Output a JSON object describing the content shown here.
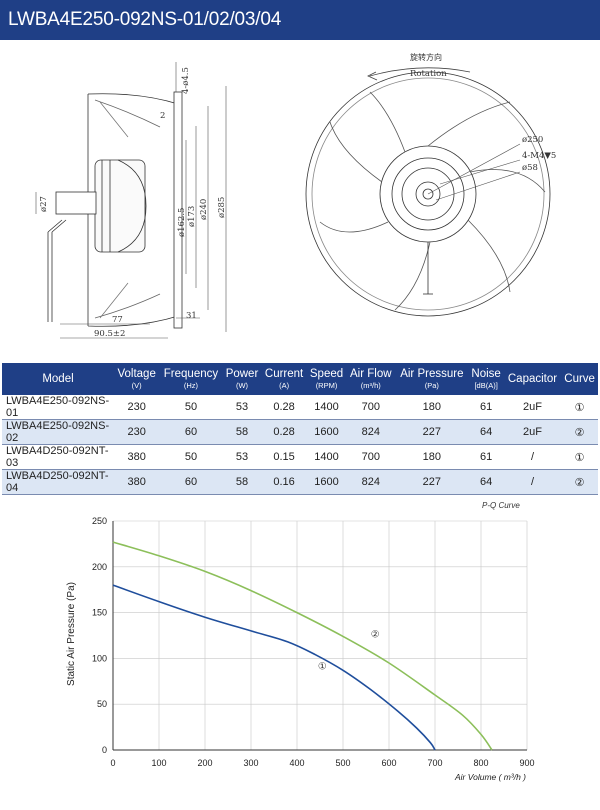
{
  "title": "LWBA4E250-092NS-01/02/03/04",
  "drawing": {
    "side_dims": [
      "4-ø4.5",
      "2",
      "ø27",
      "ø162.5",
      "ø173",
      "ø240",
      "ø285",
      "77",
      "90.5±2",
      "31"
    ],
    "front_labels": [
      "旋转方向",
      "Rotation",
      "ø250",
      "4-M4▼5",
      "ø58"
    ]
  },
  "table": {
    "headers": [
      {
        "label": "Model",
        "unit": ""
      },
      {
        "label": "Voltage",
        "unit": "(V)"
      },
      {
        "label": "Frequency",
        "unit": "(Hz)"
      },
      {
        "label": "Power",
        "unit": "(W)"
      },
      {
        "label": "Current",
        "unit": "(A)"
      },
      {
        "label": "Speed",
        "unit": "(RPM)"
      },
      {
        "label": "Air Flow",
        "unit": "(m³/h)"
      },
      {
        "label": "Air Pressure",
        "unit": "(Pa)"
      },
      {
        "label": "Noise",
        "unit": "[dB(A)]"
      },
      {
        "label": "Capacitor",
        "unit": ""
      },
      {
        "label": "Curve",
        "unit": ""
      }
    ],
    "rows": [
      [
        "LWBA4E250-092NS-01",
        "230",
        "50",
        "53",
        "0.28",
        "1400",
        "700",
        "180",
        "61",
        "2uF",
        "①"
      ],
      [
        "LWBA4E250-092NS-02",
        "230",
        "60",
        "58",
        "0.28",
        "1600",
        "824",
        "227",
        "64",
        "2uF",
        "②"
      ],
      [
        "LWBA4D250-092NT-03",
        "380",
        "50",
        "53",
        "0.15",
        "1400",
        "700",
        "180",
        "61",
        "/",
        "①"
      ],
      [
        "LWBA4D250-092NT-04",
        "380",
        "60",
        "58",
        "0.16",
        "1600",
        "824",
        "227",
        "64",
        "/",
        "②"
      ]
    ]
  },
  "chart_data": {
    "type": "line",
    "title": "P-Q Curve",
    "xlabel": "Air Volume ( m³/h )",
    "ylabel": "Static Air Pressure  (Pa)",
    "xlim": [
      0,
      900
    ],
    "ylim": [
      0,
      250
    ],
    "xticks": [
      0,
      100,
      200,
      300,
      400,
      500,
      600,
      700,
      800,
      900
    ],
    "yticks": [
      0,
      50,
      100,
      150,
      200,
      250
    ],
    "grid": true,
    "series": [
      {
        "name": "①",
        "color": "#1f4e9c",
        "x": [
          0,
          100,
          200,
          300,
          380,
          440,
          500,
          560,
          620,
          660,
          690,
          700
        ],
        "y": [
          180,
          162,
          145,
          130,
          118,
          104,
          87,
          66,
          42,
          24,
          8,
          0
        ]
      },
      {
        "name": "②",
        "color": "#8cbf5a",
        "x": [
          0,
          100,
          200,
          300,
          400,
          500,
          600,
          700,
          760,
          800,
          824
        ],
        "y": [
          227,
          212,
          195,
          174,
          150,
          124,
          95,
          60,
          38,
          17,
          0
        ]
      }
    ],
    "annotations": [
      {
        "text": "①",
        "x": 455,
        "y": 88
      },
      {
        "text": "②",
        "x": 570,
        "y": 123
      }
    ]
  }
}
